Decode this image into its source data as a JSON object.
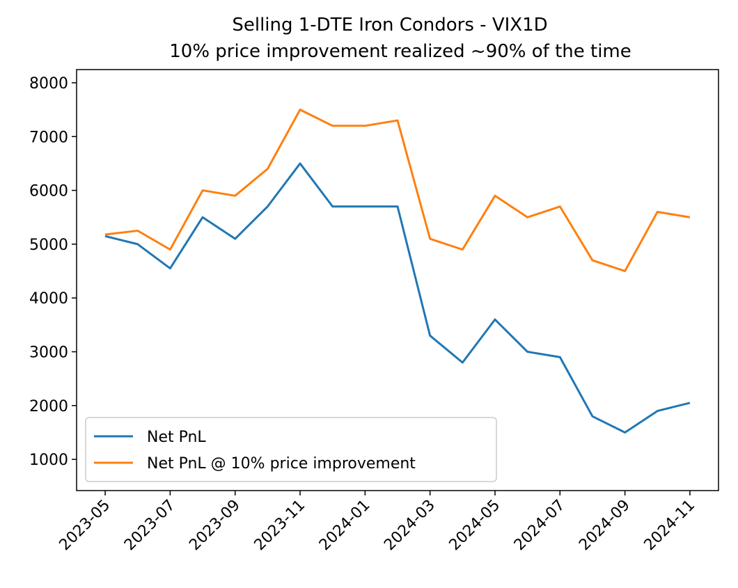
{
  "chart_data": {
    "type": "line",
    "title": "Selling 1-DTE Iron Condors - VIX1D",
    "subtitle": "10% price improvement realized ~90% of the time",
    "x": [
      "2023-05",
      "2023-06",
      "2023-07",
      "2023-08",
      "2023-09",
      "2023-10",
      "2023-11",
      "2023-12",
      "2024-01",
      "2024-02",
      "2024-03",
      "2024-04",
      "2024-05",
      "2024-06",
      "2024-07",
      "2024-08",
      "2024-09",
      "2024-10",
      "2024-11"
    ],
    "series": [
      {
        "name": "Net PnL",
        "color": "#1f77b4",
        "values": [
          5150,
          5000,
          4550,
          5500,
          5100,
          5700,
          6500,
          5700,
          5700,
          5700,
          3300,
          2800,
          3600,
          3000,
          2900,
          1800,
          1500,
          1900,
          2050
        ]
      },
      {
        "name": "Net PnL @ 10% price improvement",
        "color": "#ff7f0e",
        "values": [
          5180,
          5250,
          4900,
          6000,
          5900,
          6400,
          7500,
          7200,
          7200,
          7300,
          5100,
          4900,
          5900,
          5500,
          5700,
          4700,
          4500,
          5600,
          5500
        ]
      }
    ],
    "xticks": [
      "2023-05",
      "2023-07",
      "2023-09",
      "2023-11",
      "2024-01",
      "2024-03",
      "2024-05",
      "2024-07",
      "2024-09",
      "2024-11"
    ],
    "ylim": [
      420,
      8245
    ],
    "yticks": [
      1000,
      2000,
      3000,
      4000,
      5000,
      6000,
      7000,
      8000
    ],
    "legend": "lower left"
  }
}
